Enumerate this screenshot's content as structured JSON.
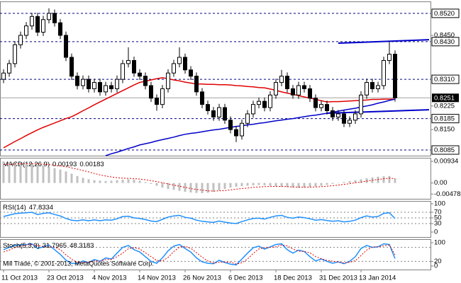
{
  "chart_data": [
    {
      "type": "candlestick",
      "categories": [
        "11 Oct 2013",
        null,
        null,
        null,
        null,
        null,
        null,
        null,
        "23 Oct 2013",
        null,
        null,
        null,
        null,
        null,
        null,
        null,
        "4 Nov 2013",
        null,
        null,
        null,
        null,
        null,
        null,
        null,
        "14 Nov 2013",
        null,
        null,
        null,
        null,
        null,
        null,
        null,
        "26 Nov 2013",
        null,
        null,
        null,
        null,
        null,
        null,
        null,
        "6 Dec 2013",
        null,
        null,
        null,
        null,
        null,
        null,
        null,
        "18 Dec 2013",
        null,
        null,
        null,
        null,
        null,
        null,
        null,
        "31 Dec 2013",
        null,
        null,
        null,
        null,
        null,
        null,
        "13 Jan 2014",
        null,
        null,
        null,
        null,
        null,
        null
      ],
      "open": [
        0.831,
        0.833,
        0.836,
        0.842,
        0.845,
        0.848,
        0.851,
        0.846,
        0.85,
        0.852,
        0.849,
        0.845,
        0.838,
        0.832,
        0.829,
        0.831,
        0.828,
        0.83,
        0.827,
        0.829,
        0.828,
        0.831,
        0.836,
        0.837,
        0.833,
        0.832,
        0.829,
        0.825,
        0.823,
        0.828,
        0.833,
        0.836,
        0.838,
        0.834,
        0.832,
        0.827,
        0.823,
        0.821,
        0.819,
        0.822,
        0.818,
        0.815,
        0.813,
        0.817,
        0.82,
        0.823,
        0.824,
        0.822,
        0.826,
        0.83,
        0.832,
        0.828,
        0.826,
        0.829,
        0.828,
        0.825,
        0.822,
        0.823,
        0.821,
        0.819,
        0.82,
        0.817,
        0.818,
        0.82,
        0.826,
        0.83,
        0.828,
        0.829,
        0.837,
        0.839
      ],
      "high": [
        0.8342,
        0.8372,
        0.8432,
        0.8462,
        0.8492,
        0.8522,
        0.8522,
        0.8512,
        0.8536,
        0.8532,
        0.8502,
        0.8462,
        0.8392,
        0.8332,
        0.8322,
        0.8322,
        0.8312,
        0.8312,
        0.8302,
        0.8302,
        0.8322,
        0.8372,
        0.8412,
        0.8382,
        0.8342,
        0.8332,
        0.8302,
        0.8262,
        0.8292,
        0.8342,
        0.8372,
        0.8412,
        0.8392,
        0.8352,
        0.8332,
        0.8282,
        0.8242,
        0.8222,
        0.8232,
        0.8232,
        0.8192,
        0.8162,
        0.8182,
        0.8212,
        0.8242,
        0.8252,
        0.8252,
        0.8272,
        0.8312,
        0.834,
        0.8332,
        0.8292,
        0.8302,
        0.8302,
        0.8292,
        0.8262,
        0.8242,
        0.8242,
        0.8222,
        0.8212,
        0.8212,
        0.8192,
        0.8212,
        0.8272,
        0.8312,
        0.8312,
        0.8302,
        0.8382,
        0.843,
        0.8402
      ],
      "low": [
        0.8298,
        0.8318,
        0.8348,
        0.8408,
        0.8438,
        0.8468,
        0.8448,
        0.8448,
        0.8488,
        0.8478,
        0.8438,
        0.8368,
        0.8308,
        0.8278,
        0.8278,
        0.8268,
        0.8268,
        0.8258,
        0.8258,
        0.8268,
        0.8268,
        0.8298,
        0.8348,
        0.8318,
        0.8308,
        0.8278,
        0.8238,
        0.821,
        0.8218,
        0.8268,
        0.8318,
        0.8348,
        0.8328,
        0.8308,
        0.8258,
        0.8218,
        0.8198,
        0.8178,
        0.8178,
        0.8168,
        0.8138,
        0.811,
        0.8118,
        0.8158,
        0.8188,
        0.8218,
        0.8208,
        0.8208,
        0.8248,
        0.8288,
        0.8268,
        0.8248,
        0.8248,
        0.8268,
        0.8238,
        0.8208,
        0.8208,
        0.8198,
        0.8178,
        0.8178,
        0.8158,
        0.8158,
        0.8168,
        0.8188,
        0.8248,
        0.8268,
        0.8268,
        0.8278,
        0.8358,
        0.8239
      ],
      "close": [
        0.833,
        0.836,
        0.842,
        0.845,
        0.848,
        0.851,
        0.846,
        0.85,
        0.852,
        0.849,
        0.845,
        0.838,
        0.832,
        0.829,
        0.831,
        0.828,
        0.83,
        0.827,
        0.829,
        0.828,
        0.831,
        0.836,
        0.837,
        0.833,
        0.832,
        0.829,
        0.825,
        0.823,
        0.828,
        0.833,
        0.836,
        0.838,
        0.834,
        0.832,
        0.827,
        0.823,
        0.821,
        0.819,
        0.822,
        0.818,
        0.815,
        0.813,
        0.817,
        0.82,
        0.823,
        0.824,
        0.822,
        0.826,
        0.83,
        0.832,
        0.828,
        0.826,
        0.829,
        0.828,
        0.825,
        0.822,
        0.823,
        0.821,
        0.819,
        0.82,
        0.817,
        0.818,
        0.82,
        0.826,
        0.83,
        0.828,
        0.829,
        0.837,
        0.839,
        0.8251
      ],
      "up_color": "#ffffff",
      "down_color": "#000000",
      "series": [
        {
          "color": "#e00000",
          "values": [
            0.8092,
            0.8102,
            0.8112,
            0.8121,
            0.8131,
            0.814,
            0.8149,
            0.8157,
            0.8164,
            0.8171,
            0.8178,
            0.8185,
            0.8191,
            0.82,
            0.821,
            0.8219,
            0.8229,
            0.8238,
            0.8247,
            0.8256,
            0.8265,
            0.8274,
            0.8283,
            0.8292,
            0.83,
            0.8304,
            0.8308,
            0.8312,
            0.8315,
            0.8312,
            0.8308,
            0.8305,
            0.8301,
            0.8298,
            0.8295,
            0.8295,
            0.8294,
            0.8294,
            0.8293,
            0.8293,
            0.8292,
            0.829,
            0.8289,
            0.8287,
            0.8286,
            0.8284,
            0.8283,
            0.8279,
            0.8275,
            0.827,
            0.8266,
            0.8262,
            0.8258,
            0.8254,
            0.825,
            0.8246,
            0.8242,
            0.8238,
            0.8239,
            0.8239,
            0.824,
            0.8241,
            0.8242,
            0.8243,
            0.8244,
            0.8246,
            0.8246,
            0.8247,
            0.8247,
            0.8247
          ]
        },
        {
          "color": "#0000c8",
          "values": [
            null,
            null,
            null,
            null,
            null,
            null,
            null,
            null,
            null,
            null,
            null,
            null,
            null,
            null,
            null,
            null,
            null,
            null,
            0.8067,
            0.8073,
            0.8078,
            0.8084,
            0.809,
            0.8095,
            0.8101,
            0.8105,
            0.8109,
            0.8114,
            0.8118,
            0.8122,
            0.8126,
            0.8131,
            0.8135,
            0.8138,
            0.814,
            0.8143,
            0.8146,
            0.8149,
            0.8151,
            0.8154,
            0.8157,
            0.816,
            0.8162,
            0.8165,
            0.8167,
            0.817,
            0.8172,
            0.8175,
            0.8178,
            0.818,
            0.8183,
            0.8185,
            0.8188,
            0.8191,
            0.8194,
            0.8196,
            0.8199,
            0.8202,
            0.8205,
            0.8209,
            0.8212,
            0.8215,
            0.8218,
            0.8222,
            0.8225,
            0.8229,
            0.8234,
            0.8238,
            0.8243,
            0.8247
          ]
        }
      ],
      "trendlines": [
        {
          "color": "#0000c8",
          "x": [
            59,
            75
          ],
          "y": [
            0.8425,
            0.8436
          ]
        },
        {
          "color": "#0000c8",
          "x": [
            57,
            75
          ],
          "y": [
            0.8202,
            0.8213
          ]
        }
      ],
      "levels": [
        {
          "value": 0.852,
          "label": "0.8520"
        },
        {
          "value": 0.843,
          "label": "0.8430"
        },
        {
          "value": 0.831,
          "label": "0.8310"
        },
        0.8185,
        0.8085
      ],
      "level_color": "#000080",
      "last_price": 0.8251,
      "xlim": [
        -0.625,
        75.25
      ],
      "ylim": [
        0.8067,
        0.8558
      ],
      "yticks": [
        {
          "value": 0.845,
          "label": "0.8450"
        },
        0.8225,
        {
          "value": 0.815,
          "label": "0.8150"
        }
      ]
    },
    {
      "type": "macd",
      "title": "MACD(12,26,9)",
      "series": [
        {
          "color": "#c0c0c0",
          "values": [
            0.0093,
            0.009,
            0.0088,
            0.0087,
            0.0085,
            0.0082,
            0.0078,
            0.0074,
            0.007,
            0.0064,
            0.0058,
            0.005,
            0.004,
            0.003,
            0.0022,
            0.0016,
            0.0012,
            0.001,
            0.0008,
            0.001,
            0.0012,
            0.0014,
            0.0016,
            0.0015,
            0.001,
            0.0004,
            -0.0004,
            -0.0012,
            -0.002,
            -0.0026,
            -0.003,
            -0.0034,
            -0.0038,
            -0.0041,
            -0.0043,
            -0.0044,
            -0.0042,
            -0.0038,
            -0.0032,
            -0.0026,
            -0.002,
            -0.0016,
            -0.0014,
            -0.0012,
            -0.001,
            -0.0009,
            -0.001,
            -0.0012,
            -0.0014,
            -0.0016,
            -0.0018,
            -0.002,
            -0.0021,
            -0.002,
            -0.0018,
            -0.0015,
            -0.0012,
            -0.0008,
            -0.0004,
            0,
            0.0004,
            0.0008,
            0.0012,
            0.0016,
            0.002,
            0.0024,
            0.0027,
            0.0029,
            0.003,
            0.00193
          ]
        },
        {
          "color": "#e00000",
          "line_style": "dotted",
          "values": [
            0.008,
            0.0081,
            0.0082,
            0.0083,
            0.0083,
            0.0083,
            0.0082,
            0.0081,
            0.0079,
            0.0077,
            0.0074,
            0.007,
            0.0065,
            0.006,
            0.0054,
            0.0048,
            0.0041,
            0.0035,
            0.003,
            0.0026,
            0.0023,
            0.0021,
            0.002,
            0.0019,
            0.0017,
            0.0014,
            0.001,
            0.0006,
            0.0001,
            -0.0004,
            -0.0009,
            -0.0014,
            -0.0019,
            -0.0024,
            -0.0028,
            -0.0031,
            -0.0034,
            -0.0035,
            -0.0034,
            -0.0033,
            -0.003,
            -0.0027,
            -0.0024,
            -0.0022,
            -0.0019,
            -0.0017,
            -0.0016,
            -0.0015,
            -0.0015,
            -0.0015,
            -0.0016,
            -0.0017,
            -0.0018,
            -0.0018,
            -0.0018,
            -0.0017,
            -0.0016,
            -0.0014,
            -0.0012,
            -0.0009,
            -0.0006,
            -0.0003,
            0.0001,
            0.0004,
            0.0008,
            0.0012,
            0.0015,
            0.0018,
            0.0021,
            0.00183
          ]
        }
      ],
      "ylim": [
        -0.00685,
        0.0109
      ],
      "yticks": [
        0.00934,
        {
          "value": 0,
          "label": "0.00"
        },
        -0.00478
      ]
    },
    {
      "type": "line",
      "title": "RSI(14)",
      "series": [
        {
          "color": "#1e90ff",
          "values": [
            55,
            60,
            65,
            67,
            68,
            70,
            62,
            66,
            68,
            62,
            57,
            48,
            42,
            40,
            43,
            40,
            43,
            40,
            43,
            42,
            47,
            55,
            56,
            50,
            48,
            44,
            39,
            37,
            45,
            53,
            57,
            59,
            52,
            49,
            42,
            38,
            36,
            34,
            39,
            35,
            32,
            30,
            37,
            43,
            48,
            49,
            46,
            52,
            57,
            59,
            52,
            49,
            53,
            51,
            47,
            42,
            44,
            41,
            38,
            40,
            36,
            38,
            42,
            51,
            57,
            53,
            55,
            66,
            68,
            47.8334
          ]
        }
      ],
      "levels": [
        70,
        50,
        30
      ],
      "ylim": [
        -17.5,
        110
      ],
      "yticks": [
        100,
        70,
        50,
        30,
        0
      ]
    },
    {
      "type": "line",
      "title": "Stoch(5,3,3)",
      "copyright": "Mill Trade, © 2001-2013, MetaQuotes Software Corp.",
      "series": [
        {
          "color": "#1e90ff",
          "values": [
            70,
            80,
            88,
            90,
            92,
            95,
            75,
            82,
            90,
            70,
            50,
            25,
            12,
            10,
            22,
            15,
            28,
            20,
            35,
            30,
            55,
            80,
            88,
            70,
            60,
            40,
            20,
            12,
            35,
            65,
            85,
            92,
            75,
            60,
            35,
            18,
            12,
            10,
            25,
            15,
            8,
            5,
            30,
            55,
            78,
            85,
            72,
            82,
            92,
            95,
            70,
            55,
            68,
            62,
            40,
            22,
            30,
            20,
            12,
            18,
            10,
            20,
            40,
            75,
            88,
            80,
            82,
            95,
            92,
            31.7965
          ]
        },
        {
          "color": "#e00000",
          "line_style": "dotted",
          "values": [
            60,
            68,
            79,
            86,
            90,
            92,
            87,
            84,
            82,
            81,
            70,
            48,
            29,
            16,
            15,
            16,
            22,
            21,
            28,
            28,
            40,
            55,
            74,
            79,
            73,
            57,
            40,
            24,
            22,
            37,
            62,
            81,
            84,
            76,
            57,
            38,
            22,
            13,
            16,
            17,
            16,
            9,
            14,
            30,
            54,
            73,
            78,
            80,
            82,
            90,
            86,
            73,
            64,
            62,
            57,
            41,
            31,
            24,
            21,
            17,
            13,
            16,
            23,
            45,
            68,
            81,
            83,
            86,
            90,
            48.3183
          ]
        }
      ],
      "levels": [
        80,
        20
      ],
      "ylim": [
        -15,
        115
      ],
      "yticks": [
        100,
        20,
        0
      ]
    }
  ]
}
